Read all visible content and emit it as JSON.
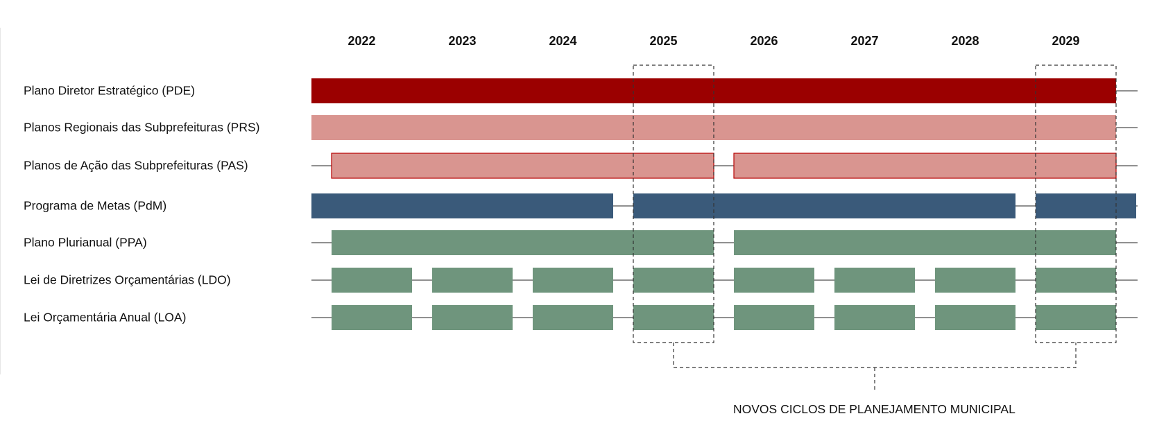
{
  "years": [
    "2022",
    "2023",
    "2024",
    "2025",
    "2026",
    "2027",
    "2028",
    "2029"
  ],
  "colors": {
    "pde": "#9b0000",
    "prs": "#d99590",
    "pas_fill": "#d99590",
    "pas_border": "#b80000",
    "pdm": "#3a5a7a",
    "green": "#6f957d"
  },
  "rows": [
    {
      "label": "Plano Diretor Estratégico (PDE)",
      "style": "pde",
      "segments": [
        [
          2022.0,
          2030.0
        ]
      ]
    },
    {
      "label": "Planos Regionais das Subprefeituras (PRS)",
      "style": "prs",
      "segments": [
        [
          2022.0,
          2030.0
        ]
      ]
    },
    {
      "label": "Planos de Ação das Subprefeituras (PAS)",
      "style": "pas",
      "segments": [
        [
          2022.2,
          2026.0
        ],
        [
          2026.2,
          2030.0
        ]
      ]
    },
    {
      "label": "Programa de Metas (PdM)",
      "style": "pdm",
      "segments": [
        [
          2022.0,
          2025.0
        ],
        [
          2025.2,
          2029.0
        ],
        [
          2029.2,
          2030.2
        ]
      ]
    },
    {
      "label": "Plano Plurianual (PPA)",
      "style": "green",
      "segments": [
        [
          2022.2,
          2026.0
        ],
        [
          2026.2,
          2030.0
        ]
      ]
    },
    {
      "label": "Lei de Diretrizes Orçamentárias (LDO)",
      "style": "green",
      "segments": [
        [
          2022.2,
          2023.0
        ],
        [
          2023.2,
          2024.0
        ],
        [
          2024.2,
          2025.0
        ],
        [
          2025.2,
          2026.0
        ],
        [
          2026.2,
          2027.0
        ],
        [
          2027.2,
          2028.0
        ],
        [
          2028.2,
          2029.0
        ],
        [
          2029.2,
          2030.0
        ]
      ]
    },
    {
      "label": "Lei Orçamentária Anual (LOA)",
      "style": "green",
      "segments": [
        [
          2022.2,
          2023.0
        ],
        [
          2023.2,
          2024.0
        ],
        [
          2024.2,
          2025.0
        ],
        [
          2025.2,
          2026.0
        ],
        [
          2026.2,
          2027.0
        ],
        [
          2027.2,
          2028.0
        ],
        [
          2028.2,
          2029.0
        ],
        [
          2029.2,
          2030.0
        ]
      ]
    }
  ],
  "highlight_years": [
    "2025",
    "2029"
  ],
  "caption": "NOVOS CICLOS DE PLANEJAMENTO MUNICIPAL"
}
